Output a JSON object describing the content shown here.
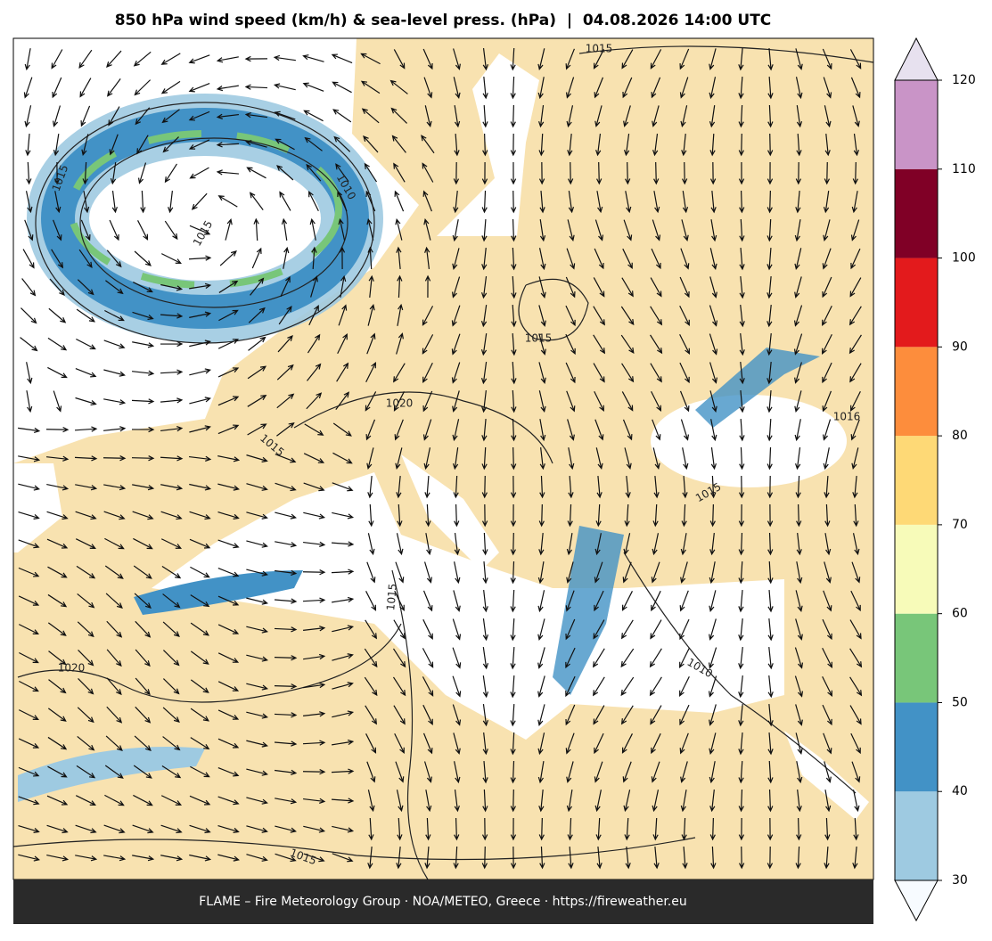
{
  "title": "850 hPa wind speed (km/h) & sea-level press. (hPa)  |  04.08.2026 14:00 UTC",
  "map": {
    "isobar_labels": [
      "1015",
      "1015",
      "1010",
      "1015",
      "1020",
      "1015",
      "1015",
      "1015",
      "1016",
      "1015",
      "1020",
      "1010",
      "1015"
    ]
  },
  "colorbar": {
    "ticks": [
      30,
      40,
      50,
      60,
      70,
      80,
      90,
      100,
      110,
      120
    ],
    "colors": [
      "#9ecae1",
      "#4292c6",
      "#78c679",
      "#f7fbb9",
      "#fed976",
      "#fd8d3c",
      "#e31a1c",
      "#800026",
      "#c994c7"
    ],
    "extend_low_color": "#f7fbff",
    "extend_high_color": "#e7e1ef"
  },
  "footer": "FLAME – Fire Meteorology Group · NOA/METEO, Greece · https://fireweather.eu"
}
